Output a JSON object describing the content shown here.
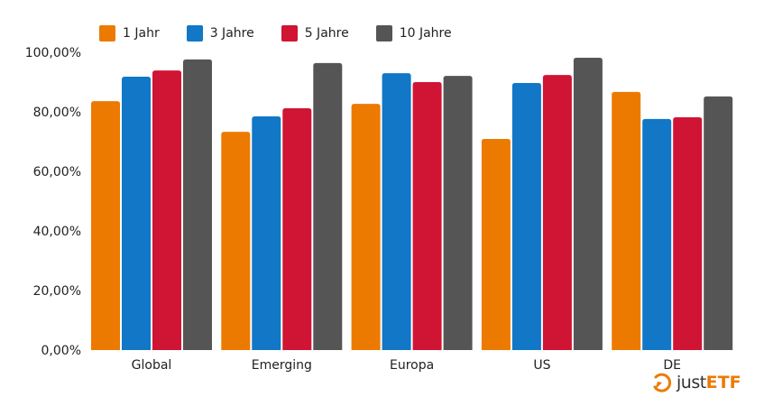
{
  "chart_data": {
    "type": "bar",
    "categories": [
      "Global",
      "Emerging",
      "Europa",
      "US",
      "DE"
    ],
    "series": [
      {
        "name": "1 Jahr",
        "color": "#ec7a00",
        "values": [
          83.6,
          73.3,
          82.7,
          70.9,
          86.7
        ]
      },
      {
        "name": "3 Jahre",
        "color": "#1177c6",
        "values": [
          91.8,
          78.5,
          93.0,
          89.7,
          77.6
        ]
      },
      {
        "name": "5 Jahre",
        "color": "#d01434",
        "values": [
          93.9,
          81.2,
          90.0,
          92.4,
          78.2
        ]
      },
      {
        "name": "10 Jahre",
        "color": "#555555",
        "values": [
          97.6,
          96.4,
          92.1,
          98.2,
          85.2
        ]
      }
    ],
    "ylim": [
      0,
      100
    ],
    "yticks": [
      "0,00%",
      "20,00%",
      "40,00%",
      "60,00%",
      "80,00%",
      "100,00%"
    ],
    "grid": false,
    "legend": "top-center",
    "xlabel": "",
    "ylabel": ""
  },
  "logo": {
    "text_1": "just",
    "text_2": "ETF",
    "color": "#ec7a00"
  }
}
